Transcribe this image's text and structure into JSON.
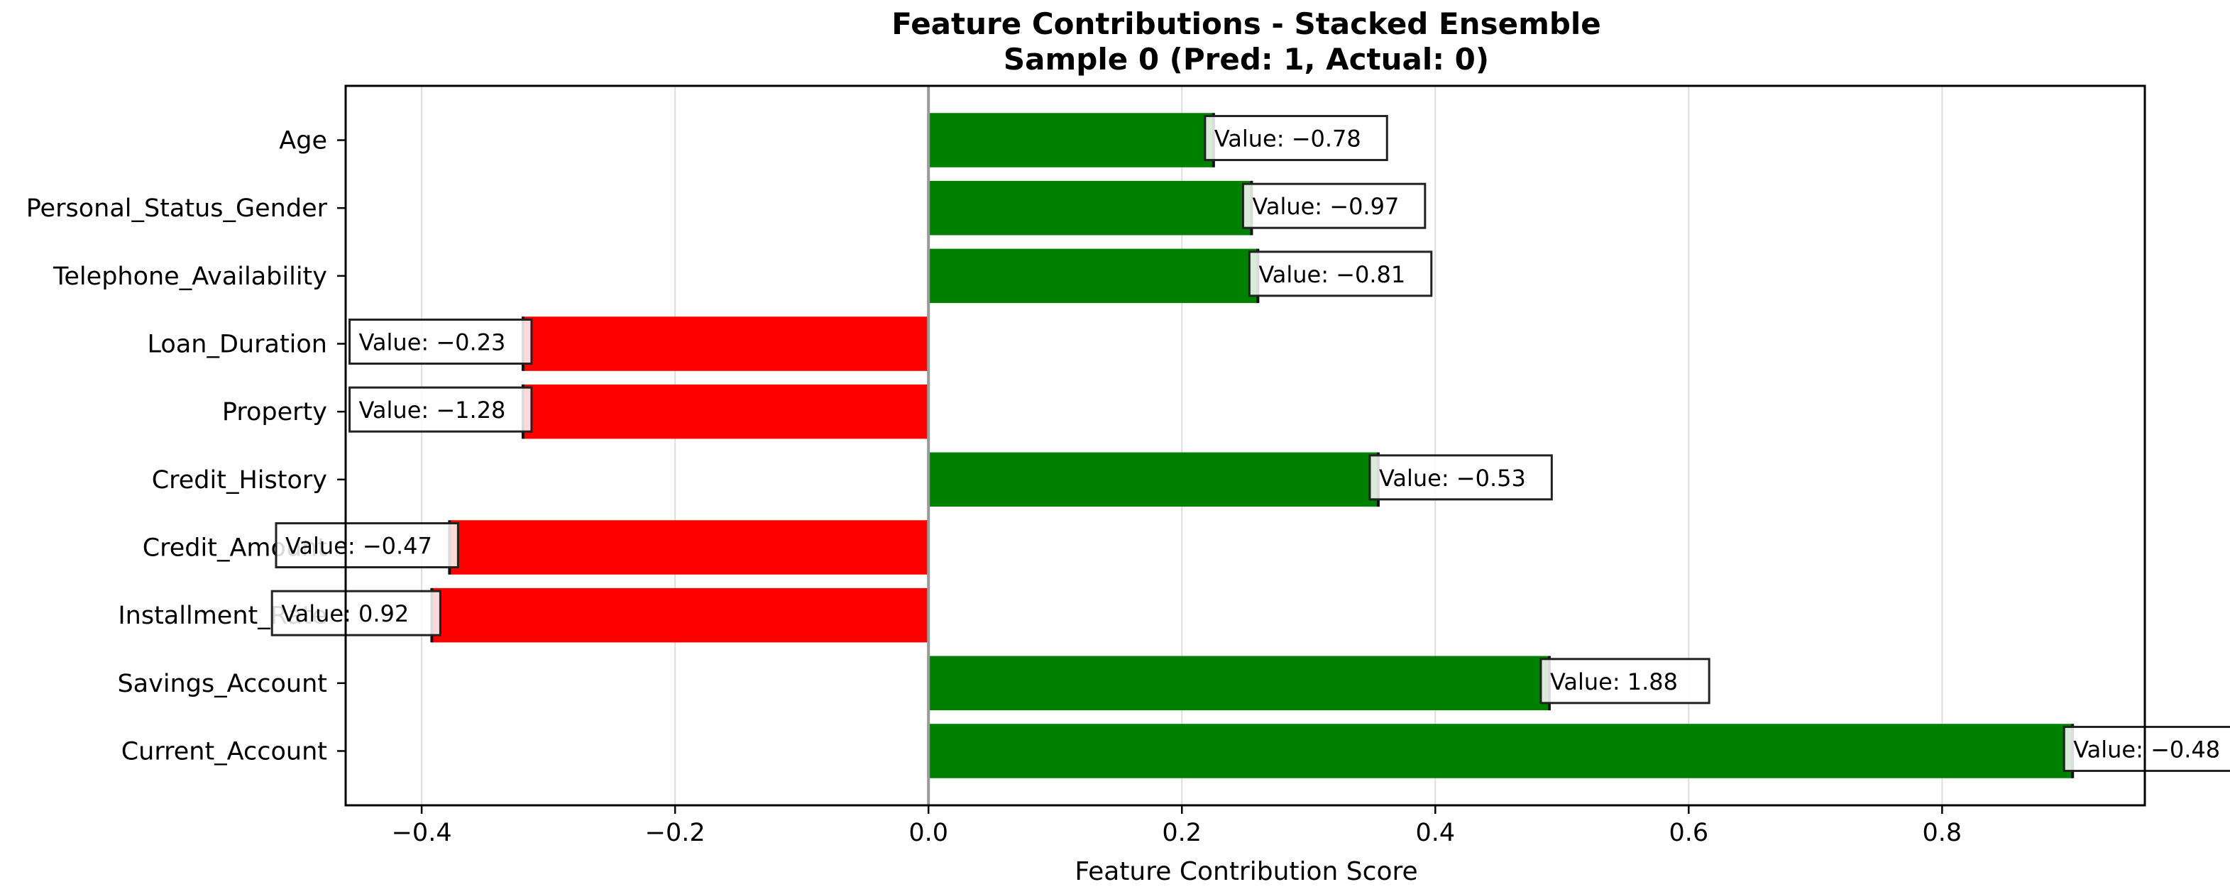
{
  "chart_data": {
    "type": "bar",
    "orientation": "horizontal",
    "title": "Feature Contributions - Stacked Ensemble",
    "subtitle": "Sample 0 (Pred: 1, Actual: 0)",
    "xlabel": "Feature Contribution Score",
    "ylabel": "",
    "xlim": [
      -0.46,
      0.96
    ],
    "xticks": [
      -0.4,
      -0.2,
      0.0,
      0.2,
      0.4,
      0.6,
      0.8
    ],
    "xtick_labels": [
      "−0.4",
      "−0.2",
      "0.0",
      "0.2",
      "0.4",
      "0.6",
      "0.8"
    ],
    "grid": "vertical",
    "colors": {
      "positive": "#008000",
      "negative": "#ff0000"
    },
    "categories": [
      "Age",
      "Personal_Status_Gender",
      "Telephone_Availability",
      "Loan_Duration",
      "Property",
      "Credit_History",
      "Credit_Amount",
      "Installment_Rate",
      "Savings_Account",
      "Current_Account"
    ],
    "values": [
      0.225,
      0.255,
      0.26,
      -0.32,
      -0.32,
      0.355,
      -0.378,
      -0.392,
      0.49,
      0.903
    ],
    "annotations": [
      "Value: −0.78",
      "Value: −0.97",
      "Value: −0.81",
      "Value: −0.23",
      "Value: −1.28",
      "Value: −0.53",
      "Value: −0.47",
      "Value: 0.92",
      "Value: 1.88",
      "Value: −0.48"
    ]
  }
}
